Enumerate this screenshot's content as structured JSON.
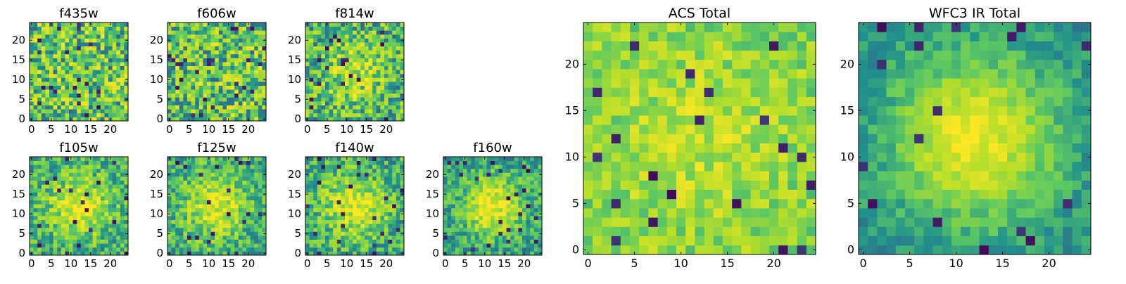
{
  "chart_data": [
    {
      "type": "heatmap",
      "title": "f435w",
      "pattern": "noise",
      "seed": 11,
      "n": 25,
      "xticks": [
        0,
        5,
        10,
        15,
        20
      ],
      "yticks": [
        0,
        5,
        10,
        15,
        20
      ]
    },
    {
      "type": "heatmap",
      "title": "f606w",
      "pattern": "noise",
      "seed": 23,
      "n": 25,
      "xticks": [
        0,
        5,
        10,
        15,
        20
      ],
      "yticks": [
        0,
        5,
        10,
        15,
        20
      ]
    },
    {
      "type": "heatmap",
      "title": "f814w",
      "pattern": "faint-center",
      "seed": 37,
      "n": 25,
      "xticks": [
        0,
        5,
        10,
        15,
        20
      ],
      "yticks": [
        0,
        5,
        10,
        15,
        20
      ]
    },
    {
      "type": "heatmap",
      "title": "f105w",
      "pattern": "center",
      "seed": 41,
      "n": 25,
      "xticks": [
        0,
        5,
        10,
        15,
        20
      ],
      "yticks": [
        0,
        5,
        10,
        15,
        20
      ]
    },
    {
      "type": "heatmap",
      "title": "f125w",
      "pattern": "center",
      "seed": 53,
      "n": 25,
      "xticks": [
        0,
        5,
        10,
        15,
        20
      ],
      "yticks": [
        0,
        5,
        10,
        15,
        20
      ]
    },
    {
      "type": "heatmap",
      "title": "f140w",
      "pattern": "center",
      "seed": 67,
      "n": 25,
      "xticks": [
        0,
        5,
        10,
        15,
        20
      ],
      "yticks": [
        0,
        5,
        10,
        15,
        20
      ]
    },
    {
      "type": "heatmap",
      "title": "f160w",
      "pattern": "strong-center",
      "seed": 71,
      "n": 25,
      "xticks": [
        0,
        5,
        10,
        15,
        20
      ],
      "yticks": [
        0,
        5,
        10,
        15,
        20
      ]
    },
    {
      "type": "heatmap",
      "title": "ACS Total",
      "pattern": "acs",
      "seed": 83,
      "n": 25,
      "xticks": [
        0,
        5,
        10,
        15,
        20
      ],
      "yticks": [
        0,
        5,
        10,
        15,
        20
      ]
    },
    {
      "type": "heatmap",
      "title": "WFC3 IR Total",
      "pattern": "wfc3",
      "seed": 97,
      "n": 25,
      "xticks": [
        0,
        5,
        10,
        15,
        20
      ],
      "yticks": [
        0,
        5,
        10,
        15,
        20
      ]
    }
  ],
  "colormap": [
    "#440154",
    "#3b528b",
    "#21918c",
    "#5ec962",
    "#b5de2b",
    "#fde725"
  ]
}
